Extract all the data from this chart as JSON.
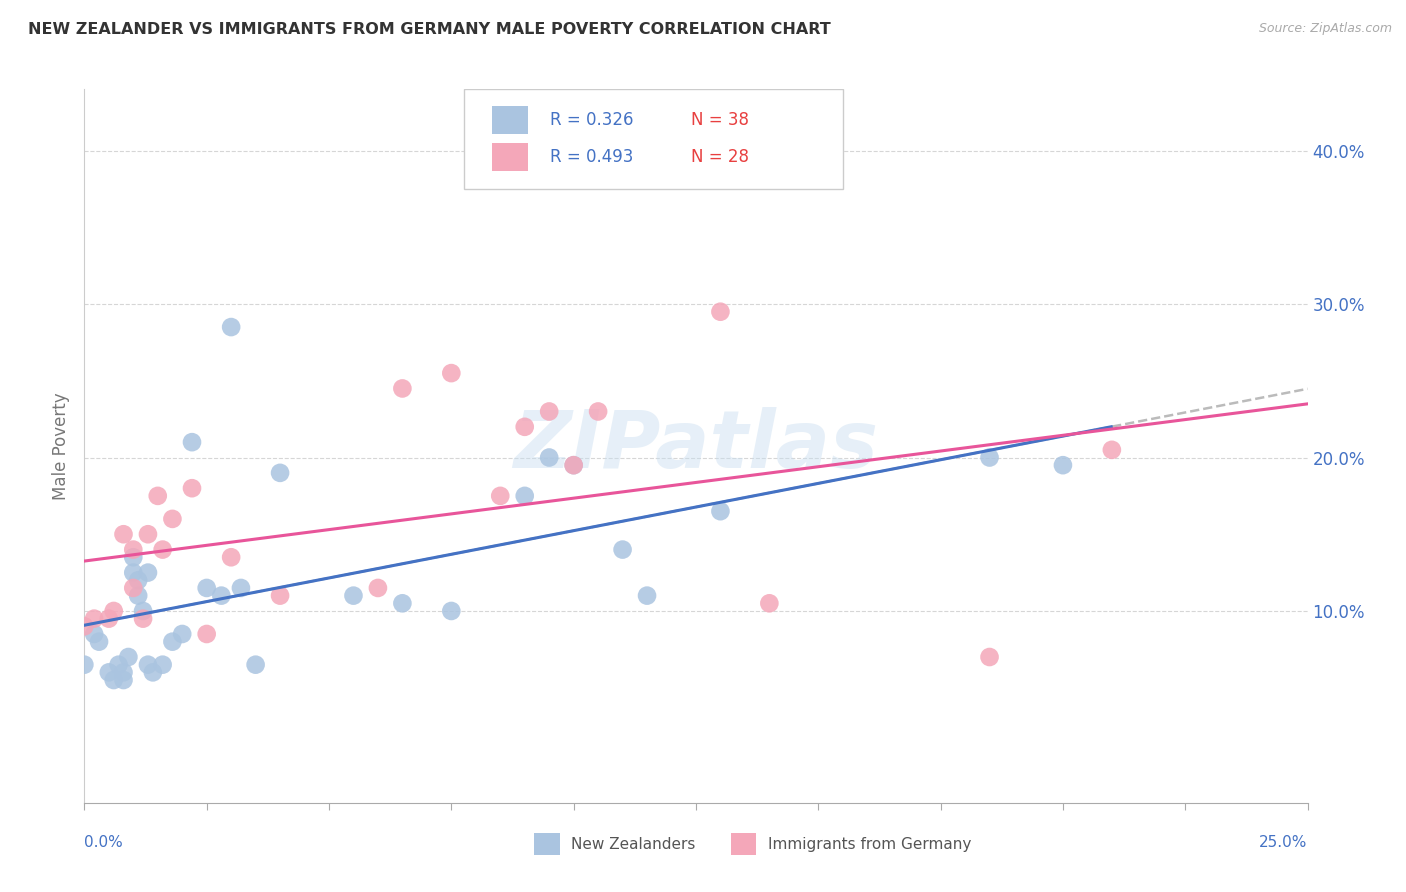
{
  "title": "NEW ZEALANDER VS IMMIGRANTS FROM GERMANY MALE POVERTY CORRELATION CHART",
  "source": "Source: ZipAtlas.com",
  "ylabel": "Male Poverty",
  "y_ticks": [
    0.1,
    0.2,
    0.3,
    0.4
  ],
  "y_tick_labels": [
    "10.0%",
    "20.0%",
    "30.0%",
    "40.0%"
  ],
  "xlim": [
    0.0,
    0.25
  ],
  "ylim": [
    -0.025,
    0.44
  ],
  "nz_color": "#aac4e0",
  "ger_color": "#f4a7b9",
  "nz_line_color": "#4472c4",
  "ger_line_color": "#e8559a",
  "dash_color": "#bbbbbb",
  "nz_R": 0.326,
  "nz_N": 38,
  "ger_R": 0.493,
  "ger_N": 28,
  "watermark": "ZIPatlas",
  "legend_labels": [
    "New Zealanders",
    "Immigrants from Germany"
  ],
  "r_text_color": "#4472c4",
  "n_text_color": "#e84040",
  "nz_x": [
    0.0,
    0.002,
    0.003,
    0.005,
    0.006,
    0.007,
    0.008,
    0.008,
    0.009,
    0.01,
    0.01,
    0.011,
    0.011,
    0.012,
    0.013,
    0.013,
    0.014,
    0.016,
    0.018,
    0.02,
    0.022,
    0.025,
    0.028,
    0.03,
    0.032,
    0.035,
    0.04,
    0.055,
    0.065,
    0.075,
    0.09,
    0.095,
    0.1,
    0.11,
    0.115,
    0.13,
    0.185,
    0.2
  ],
  "nz_y": [
    0.065,
    0.085,
    0.08,
    0.06,
    0.055,
    0.065,
    0.06,
    0.055,
    0.07,
    0.135,
    0.125,
    0.12,
    0.11,
    0.1,
    0.125,
    0.065,
    0.06,
    0.065,
    0.08,
    0.085,
    0.21,
    0.115,
    0.11,
    0.285,
    0.115,
    0.065,
    0.19,
    0.11,
    0.105,
    0.1,
    0.175,
    0.2,
    0.195,
    0.14,
    0.11,
    0.165,
    0.2,
    0.195
  ],
  "ger_x": [
    0.0,
    0.002,
    0.005,
    0.006,
    0.008,
    0.01,
    0.01,
    0.012,
    0.013,
    0.015,
    0.016,
    0.018,
    0.022,
    0.025,
    0.03,
    0.04,
    0.06,
    0.065,
    0.075,
    0.085,
    0.09,
    0.095,
    0.1,
    0.105,
    0.13,
    0.14,
    0.185,
    0.21
  ],
  "ger_y": [
    0.09,
    0.095,
    0.095,
    0.1,
    0.15,
    0.14,
    0.115,
    0.095,
    0.15,
    0.175,
    0.14,
    0.16,
    0.18,
    0.085,
    0.135,
    0.11,
    0.115,
    0.245,
    0.255,
    0.175,
    0.22,
    0.23,
    0.195,
    0.23,
    0.295,
    0.105,
    0.07,
    0.205
  ],
  "x_minor_ticks": [
    0.025,
    0.05,
    0.075,
    0.1,
    0.125,
    0.15,
    0.175,
    0.2,
    0.225
  ]
}
